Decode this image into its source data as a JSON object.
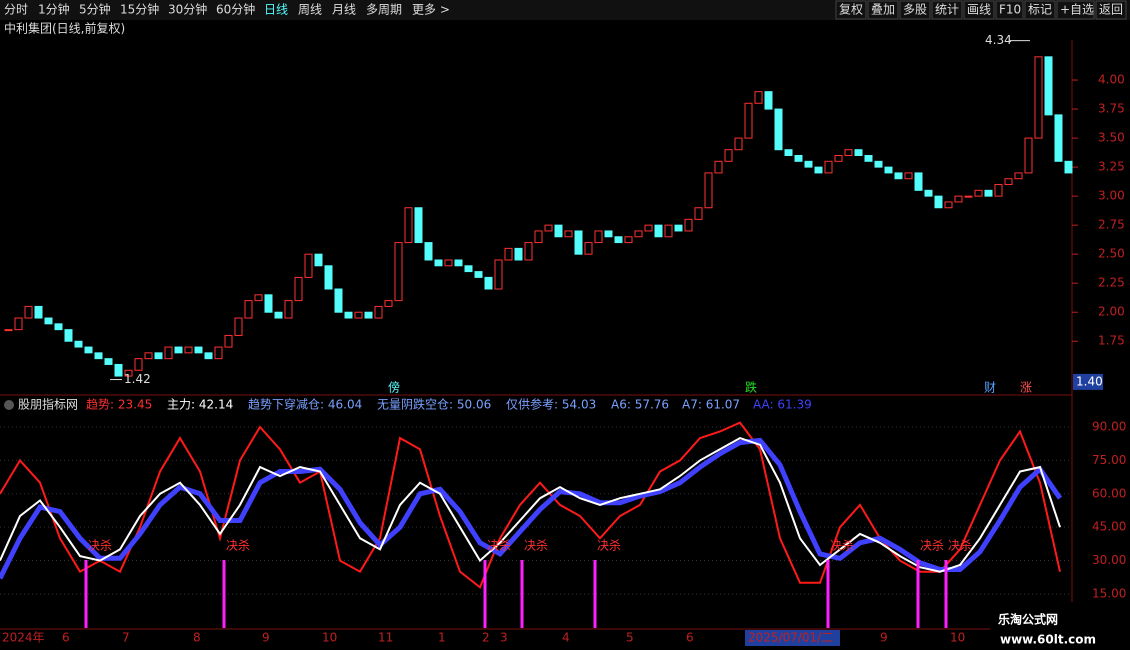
{
  "toolbar": {
    "left": [
      "分时",
      "1分钟",
      "5分钟",
      "15分钟",
      "30分钟",
      "60分钟",
      "日线",
      "周线",
      "月线",
      "多周期",
      "更多 >"
    ],
    "right": [
      "复权",
      "叠加",
      "多股",
      "统计",
      "画线",
      "F10",
      "标记",
      "+自选",
      "返回"
    ]
  },
  "title": "中利集团(日线,前复权)",
  "price_chart": {
    "type": "candlestick",
    "closes": [
      1.85,
      1.95,
      2.05,
      1.95,
      1.9,
      1.85,
      1.75,
      1.7,
      1.65,
      1.6,
      1.55,
      1.45,
      1.5,
      1.6,
      1.65,
      1.6,
      1.7,
      1.65,
      1.7,
      1.65,
      1.6,
      1.7,
      1.8,
      1.95,
      2.1,
      2.15,
      2.0,
      1.95,
      2.1,
      2.3,
      2.5,
      2.4,
      2.2,
      2.0,
      1.95,
      2.0,
      1.95,
      2.05,
      2.1,
      2.6,
      2.9,
      2.6,
      2.45,
      2.4,
      2.45,
      2.4,
      2.35,
      2.3,
      2.2,
      2.45,
      2.55,
      2.45,
      2.6,
      2.7,
      2.75,
      2.65,
      2.7,
      2.5,
      2.6,
      2.7,
      2.65,
      2.6,
      2.65,
      2.7,
      2.75,
      2.65,
      2.75,
      2.7,
      2.8,
      2.9,
      3.2,
      3.3,
      3.4,
      3.5,
      3.8,
      3.9,
      3.75,
      3.4,
      3.35,
      3.3,
      3.25,
      3.2,
      3.3,
      3.35,
      3.4,
      3.35,
      3.3,
      3.25,
      3.2,
      3.15,
      3.2,
      3.05,
      3.0,
      2.9,
      2.95,
      3.0,
      3.0,
      3.05,
      3.0,
      3.1,
      3.15,
      3.2,
      3.5,
      4.2,
      3.7,
      3.3,
      3.2
    ],
    "up_color": "#ff3232",
    "down_color": "#54fcfc",
    "ylim": [
      1.33,
      4.345
    ],
    "yticks": [
      {
        "value": 4.0,
        "label": "4.00"
      },
      {
        "value": 3.75,
        "label": "3.75"
      },
      {
        "value": 3.5,
        "label": "3.50"
      },
      {
        "value": 3.25,
        "label": "3.25"
      },
      {
        "value": 3.0,
        "label": "3.00"
      },
      {
        "value": 2.75,
        "label": "2.75"
      },
      {
        "value": 2.5,
        "label": "2.50"
      },
      {
        "value": 2.25,
        "label": "2.25"
      },
      {
        "value": 2.0,
        "label": "2.00"
      },
      {
        "value": 1.75,
        "label": "1.75"
      }
    ],
    "current": {
      "value": 1.4,
      "label": "1.40"
    },
    "low": {
      "value": 1.42,
      "label": "1.42"
    },
    "high": {
      "value": 4.34,
      "label": "4.34"
    },
    "events": [
      "傍",
      "跌",
      "财",
      "涨"
    ]
  },
  "indicator": {
    "type": "line",
    "legend": [
      "股朋指标网",
      "趋势: 23.45",
      "主力: 42.14",
      "趋势下穿减仓: 46.04",
      "无量阴跌空仓: 50.06",
      "仅供参考: 54.03",
      "A6: 57.76",
      "A7: 61.07",
      "AA: 61.39"
    ],
    "ylim": [
      -0.3,
      95.4
    ],
    "yticks": [
      {
        "value": 90,
        "label": "90.00"
      },
      {
        "value": 75,
        "label": "75.00"
      },
      {
        "value": 60,
        "label": "60.00"
      },
      {
        "value": 45,
        "label": "45.00"
      },
      {
        "value": 30,
        "label": "30.00"
      },
      {
        "value": 15,
        "label": "15.00"
      }
    ],
    "series": [
      {
        "color": "#ff1a1a",
        "values": [
          60,
          75,
          65,
          40,
          25,
          30,
          25,
          45,
          70,
          85,
          70,
          40,
          75,
          90,
          80,
          65,
          70,
          30,
          25,
          40,
          85,
          80,
          50,
          25,
          18,
          40,
          55,
          65,
          55,
          50,
          40,
          50,
          55,
          70,
          75,
          85,
          88,
          92,
          80,
          40,
          20,
          20,
          45,
          55,
          40,
          30,
          25,
          25,
          35,
          55,
          75,
          88,
          65,
          25
        ]
      },
      {
        "color": "#4040ff",
        "values": [
          22,
          40,
          54,
          52,
          40,
          31,
          31,
          42,
          55,
          63,
          60,
          48,
          48,
          65,
          70,
          70,
          71,
          62,
          47,
          37,
          45,
          60,
          62,
          52,
          38,
          33,
          43,
          53,
          61,
          60,
          56,
          56,
          59,
          61,
          65,
          72,
          78,
          83,
          84,
          73,
          52,
          33,
          31,
          38,
          40,
          35,
          29,
          26,
          26,
          34,
          48,
          63,
          71,
          58
        ]
      },
      {
        "color": "#ffffff",
        "values": [
          30,
          50,
          57,
          45,
          32,
          30,
          35,
          50,
          60,
          65,
          55,
          42,
          55,
          72,
          68,
          72,
          70,
          55,
          40,
          35,
          55,
          65,
          60,
          45,
          30,
          38,
          48,
          58,
          63,
          58,
          55,
          58,
          60,
          62,
          68,
          75,
          80,
          85,
          82,
          65,
          40,
          28,
          35,
          42,
          38,
          32,
          27,
          25,
          28,
          40,
          55,
          70,
          72,
          45
        ]
      }
    ],
    "signals": [
      "决杀",
      "决杀",
      "决杀",
      "决杀",
      "决杀",
      "决杀",
      "决杀",
      "决杀"
    ]
  },
  "x_axis": [
    "2024年",
    "6",
    "7",
    "8",
    "9",
    "10",
    "11",
    "1",
    "2",
    "3",
    "4",
    "5",
    "6",
    "2025/07/01/二",
    "9",
    "10"
  ],
  "watermark": [
    "乐淘公式网",
    "www.60lt.com"
  ]
}
